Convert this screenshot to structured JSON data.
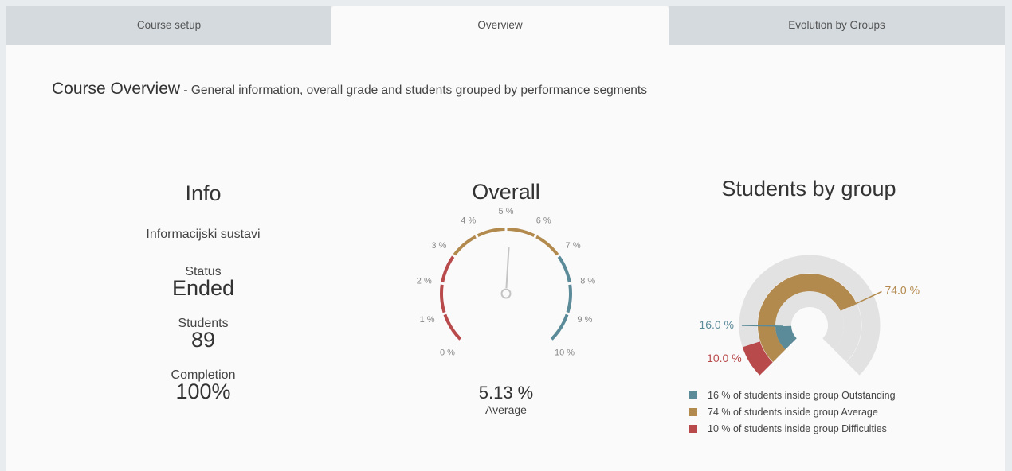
{
  "tabs": [
    {
      "label": "Course setup",
      "active": false
    },
    {
      "label": "Overview",
      "active": true
    },
    {
      "label": "Evolution by Groups",
      "active": false
    }
  ],
  "header": {
    "title": "Course Overview",
    "separator": " - ",
    "subtitle": "General information, overall grade and students grouped by performance segments"
  },
  "info": {
    "title": "Info",
    "course_name": "Informacijski sustavi",
    "status_label": "Status",
    "status_value": "Ended",
    "students_label": "Students",
    "students_value": "89",
    "completion_label": "Completion",
    "completion_value": "100%"
  },
  "overall": {
    "title": "Overall",
    "value": 5.13,
    "value_text": "5.13 %",
    "value_label": "Average",
    "scale_min": 0,
    "scale_max": 10,
    "tick_labels": [
      "0 %",
      "1 %",
      "2 %",
      "3 %",
      "4 %",
      "5 %",
      "6 %",
      "7 %",
      "8 %",
      "9 %",
      "10 %"
    ],
    "bands": [
      {
        "from": 0,
        "to": 3,
        "color": "#b94a4c"
      },
      {
        "from": 3,
        "to": 7,
        "color": "#b38a4d"
      },
      {
        "from": 7,
        "to": 10,
        "color": "#5b8b99"
      }
    ]
  },
  "groups": {
    "title": "Students by group",
    "chart_data": {
      "type": "radial-bar",
      "series": [
        {
          "name": "Outstanding",
          "value": 16.0,
          "label": "16.0 %",
          "color": "#5b8b99"
        },
        {
          "name": "Average",
          "value": 74.0,
          "label": "74.0 %",
          "color": "#b38a4d"
        },
        {
          "name": "Difficulties",
          "value": 10.0,
          "label": "10.0 %",
          "color": "#b94a4c"
        }
      ]
    },
    "legend": [
      {
        "text": "16 % of students inside group Outstanding",
        "color": "#5b8b99"
      },
      {
        "text": "74 % of students inside group Average",
        "color": "#b38a4d"
      },
      {
        "text": "10 % of students inside group Difficulties",
        "color": "#b94a4c"
      }
    ]
  }
}
